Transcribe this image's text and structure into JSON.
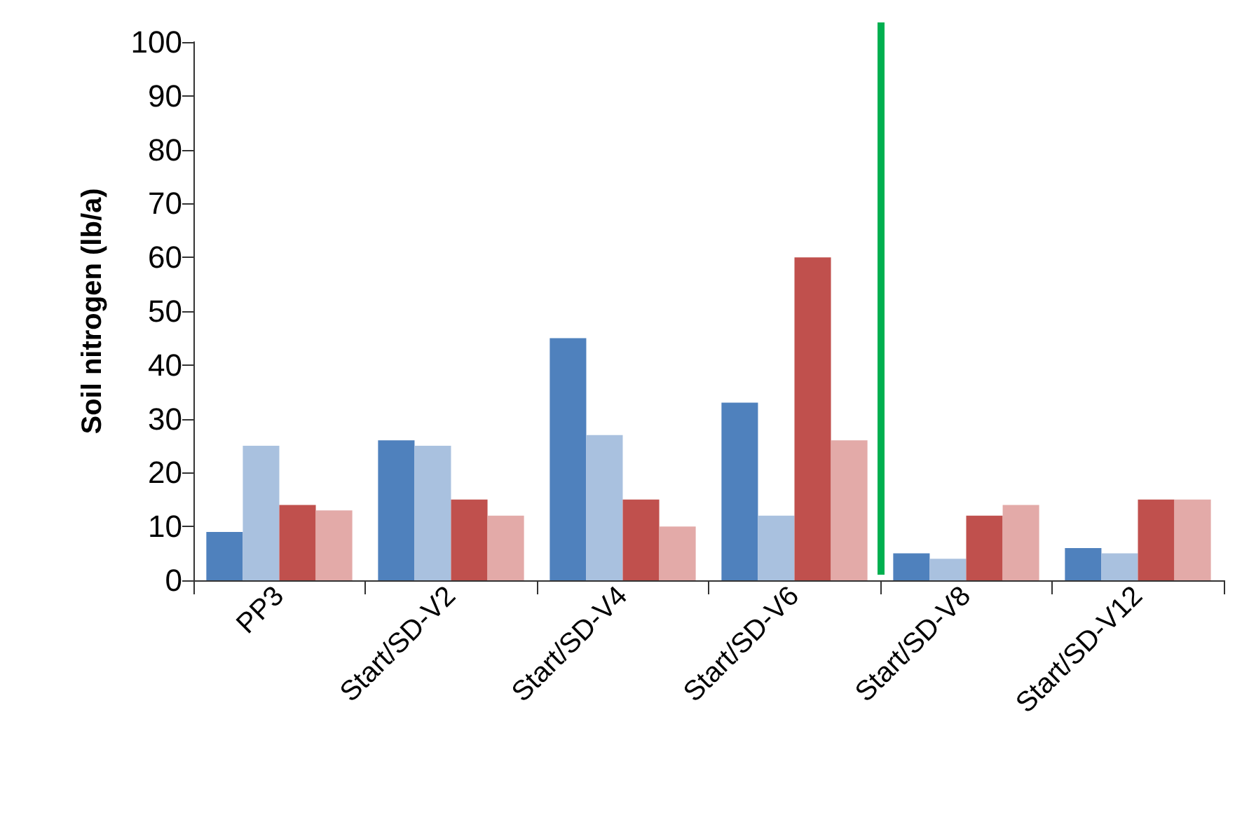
{
  "chart_data": {
    "type": "bar",
    "ylabel": "Soil nitrogen (lb/a)",
    "categories": [
      "PP3",
      "Start/SD-V2",
      "Start/SD-V4",
      "Start/SD-V6",
      "Start/SD-V8",
      "Start/SD-V12"
    ],
    "series": [
      {
        "color": "#4f81bd",
        "values": [
          9,
          26,
          45,
          33,
          5,
          6
        ]
      },
      {
        "color": "#a9c1df",
        "values": [
          25,
          25,
          27,
          12,
          4,
          5
        ]
      },
      {
        "color": "#c0504d",
        "values": [
          14,
          15,
          15,
          60,
          12,
          15
        ]
      },
      {
        "color": "#e3aaa8",
        "values": [
          13,
          12,
          10,
          26,
          14,
          15
        ]
      }
    ],
    "ylim": [
      0,
      100
    ],
    "yticks": [
      0,
      10,
      20,
      30,
      40,
      50,
      60,
      70,
      80,
      90,
      100
    ],
    "grid": false
  }
}
